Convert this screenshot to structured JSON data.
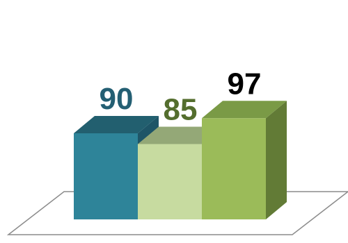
{
  "chart_data": {
    "type": "bar",
    "style": "3d-column",
    "categories": [
      "",
      "",
      ""
    ],
    "values": [
      90,
      85,
      97
    ],
    "data_labels": [
      "90",
      "85",
      "97"
    ],
    "ylim": [
      50,
      100
    ],
    "grid": false,
    "legend": "none",
    "title": "",
    "xlabel": "",
    "ylabel": "",
    "colors": {
      "fronts": [
        "#2E8499",
        "#C7DBA0",
        "#9BBB59"
      ],
      "tops": [
        "#225F6F",
        "#94A877",
        "#7A9A46"
      ],
      "sides": [
        "#1E5567",
        "#AFC58C",
        "#627B36"
      ],
      "labels": [
        "#245F73",
        "#546E2E",
        "#000000"
      ],
      "floor": "#8C8C8C"
    }
  }
}
